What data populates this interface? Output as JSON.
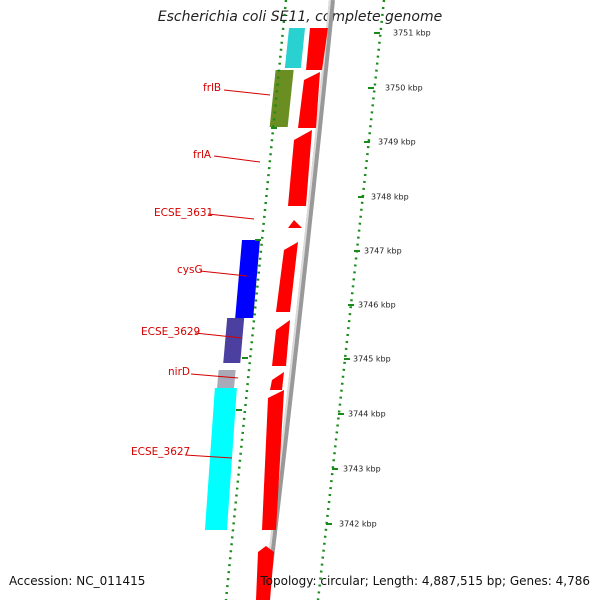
{
  "title": "Escherichia coli SE11, complete genome",
  "accession": "Accession: NC_011415",
  "topology": "Topology: circular; Length: 4,887,515 bp; Genes: 4,786",
  "scale_labels": [
    "3751 kbp",
    "3750 kbp",
    "3749 kbp",
    "3748 kbp",
    "3747 kbp",
    "3746 kbp",
    "3745 kbp",
    "3744 kbp",
    "3743 kbp",
    "3742 kbp"
  ],
  "gene_labels": [
    "frlB",
    "frlA",
    "ECSE_3631",
    "cysG",
    "ECSE_3629",
    "nirD",
    "ECSE_3627"
  ],
  "colors": {
    "cds": "#ff0000",
    "backbone": "#888888",
    "label_line": "#d40000",
    "tick": "#1a8a1a",
    "cog": [
      "#2ad1d1",
      "#6b8e23",
      "#0000ff",
      "#4b3fa0",
      "#a9a9b8",
      "#00ffff"
    ]
  }
}
